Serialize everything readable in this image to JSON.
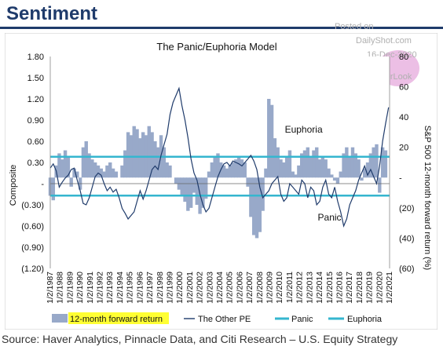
{
  "header": {
    "title": "Sentiment",
    "watermark_lines": [
      "Posted on",
      "DailyShot.com",
      "16-Dec-2020",
      "@SoberLook"
    ]
  },
  "colors": {
    "header_blue": "#1f3b6b",
    "forward_return_fill": "#98a9c9",
    "pe_line": "#1f3b6b",
    "panic_line": "#35b6cf",
    "euphoria_line": "#35b6cf",
    "legend_highlight": "#ffff33"
  },
  "chart_data": {
    "type": "area",
    "title": "The Panic/Euphoria Model",
    "ylabel": "Composite",
    "y2label": "S&P 500 12-month forward return (%)",
    "xlabel": "",
    "ylim": [
      -1.2,
      1.8
    ],
    "y2lim": [
      -60,
      80
    ],
    "xlim": [
      1987.0,
      2021.0
    ],
    "y_ticks": [
      "1.80",
      "1.50",
      "1.20",
      "0.90",
      "0.60",
      "0.30",
      "-",
      "(0.30)",
      "(0.60)",
      "(0.90)",
      "(1.20)"
    ],
    "y2_ticks": [
      "80",
      "60",
      "40",
      "20",
      "-",
      "(20)",
      "(40)",
      "(60)"
    ],
    "x_ticks": [
      "1/2/1987",
      "1/2/1988",
      "1/2/1989",
      "1/2/1990",
      "1/2/1991",
      "1/2/1992",
      "1/2/1993",
      "1/2/1994",
      "1/2/1995",
      "1/2/1996",
      "1/2/1997",
      "1/2/1998",
      "1/2/1999",
      "1/2/2000",
      "1/2/2001",
      "1/2/2002",
      "1/2/2003",
      "1/2/2004",
      "1/2/2005",
      "1/2/2006",
      "1/2/2007",
      "1/2/2008",
      "1/2/2009",
      "1/2/2010",
      "1/2/2011",
      "1/2/2012",
      "1/2/2013",
      "1/2/2014",
      "1/2/2015",
      "1/2/2016",
      "1/2/2017",
      "1/2/2018",
      "1/2/2019",
      "1/2/2020",
      "1/2/2021"
    ],
    "thresholds": {
      "panic": -0.17,
      "euphoria": 0.38
    },
    "annotations": [
      {
        "text": "Euphoria",
        "x": 2010.5,
        "y": 0.72
      },
      {
        "text": "Panic",
        "x": 2013.8,
        "y": -0.52
      }
    ],
    "legend": {
      "placement": "bottom",
      "items": [
        "12-month forward return",
        "The Other PE",
        "Panic",
        "Euphoria"
      ]
    },
    "series": [
      {
        "name": "12-month forward return",
        "axis": "right",
        "x": [
          1987.0,
          1987.3,
          1987.6,
          1987.9,
          1988.2,
          1988.5,
          1988.8,
          1989.1,
          1989.4,
          1989.7,
          1990.0,
          1990.3,
          1990.6,
          1990.9,
          1991.2,
          1991.5,
          1991.8,
          1992.1,
          1992.4,
          1992.7,
          1993.0,
          1993.3,
          1993.6,
          1993.9,
          1994.2,
          1994.5,
          1994.8,
          1995.1,
          1995.4,
          1995.7,
          1996.0,
          1996.3,
          1996.6,
          1996.9,
          1997.2,
          1997.5,
          1997.8,
          1998.1,
          1998.4,
          1998.7,
          1999.0,
          1999.3,
          1999.6,
          1999.9,
          2000.2,
          2000.5,
          2000.8,
          2001.1,
          2001.4,
          2001.7,
          2002.0,
          2002.3,
          2002.6,
          2002.9,
          2003.2,
          2003.5,
          2003.8,
          2004.1,
          2004.4,
          2004.7,
          2005.0,
          2005.3,
          2005.6,
          2005.9,
          2006.2,
          2006.5,
          2006.8,
          2007.1,
          2007.4,
          2007.7,
          2008.0,
          2008.3,
          2008.6,
          2008.9,
          2009.2,
          2009.5,
          2009.8,
          2010.1,
          2010.4,
          2010.7,
          2011.0,
          2011.3,
          2011.6,
          2011.9,
          2012.2,
          2012.5,
          2012.8,
          2013.1,
          2013.4,
          2013.7,
          2014.0,
          2014.3,
          2014.6,
          2014.9,
          2015.2,
          2015.5,
          2015.8,
          2016.1,
          2016.4,
          2016.7,
          2017.0,
          2017.3,
          2017.6,
          2017.9,
          2018.2,
          2018.5,
          2018.8,
          2019.1,
          2019.4,
          2019.7,
          2020.0,
          2020.3,
          2020.6
        ],
        "y": [
          -12,
          -15,
          8,
          16,
          12,
          18,
          14,
          -6,
          6,
          4,
          -8,
          20,
          24,
          16,
          12,
          10,
          8,
          6,
          4,
          8,
          10,
          6,
          4,
          0,
          8,
          18,
          30,
          28,
          34,
          32,
          26,
          30,
          28,
          34,
          30,
          24,
          20,
          28,
          20,
          10,
          8,
          0,
          -4,
          -8,
          -12,
          -16,
          -22,
          -20,
          -10,
          -18,
          -24,
          -20,
          -14,
          4,
          10,
          14,
          16,
          10,
          8,
          6,
          8,
          10,
          12,
          14,
          12,
          10,
          -6,
          -26,
          -38,
          -40,
          -36,
          -22,
          6,
          52,
          48,
          26,
          20,
          12,
          10,
          14,
          18,
          4,
          2,
          8,
          16,
          18,
          20,
          14,
          18,
          20,
          12,
          14,
          12,
          6,
          2,
          -2,
          -4,
          4,
          16,
          20,
          14,
          20,
          16,
          12,
          -2,
          6,
          10,
          16,
          20,
          22,
          -10,
          20,
          18
        ]
      },
      {
        "name": "The Other PE",
        "axis": "left",
        "x": [
          1987.0,
          1987.3,
          1987.6,
          1987.9,
          1988.2,
          1988.5,
          1988.8,
          1989.1,
          1989.4,
          1989.7,
          1990.0,
          1990.3,
          1990.6,
          1990.9,
          1991.2,
          1991.5,
          1991.8,
          1992.1,
          1992.4,
          1992.7,
          1993.0,
          1993.3,
          1993.6,
          1993.9,
          1994.2,
          1994.5,
          1994.8,
          1995.1,
          1995.4,
          1995.7,
          1996.0,
          1996.3,
          1996.6,
          1996.9,
          1997.2,
          1997.5,
          1997.8,
          1998.1,
          1998.4,
          1998.7,
          1999.0,
          1999.3,
          1999.6,
          1999.9,
          2000.2,
          2000.5,
          2000.8,
          2001.1,
          2001.4,
          2001.7,
          2002.0,
          2002.3,
          2002.6,
          2002.9,
          2003.2,
          2003.5,
          2003.8,
          2004.1,
          2004.4,
          2004.7,
          2005.0,
          2005.3,
          2005.6,
          2005.9,
          2006.2,
          2006.5,
          2006.8,
          2007.1,
          2007.4,
          2007.7,
          2008.0,
          2008.3,
          2008.6,
          2008.9,
          2009.2,
          2009.5,
          2009.8,
          2010.1,
          2010.4,
          2010.7,
          2011.0,
          2011.3,
          2011.6,
          2011.9,
          2012.2,
          2012.5,
          2012.8,
          2013.1,
          2013.4,
          2013.7,
          2014.0,
          2014.3,
          2014.6,
          2014.9,
          2015.2,
          2015.5,
          2015.8,
          2016.1,
          2016.4,
          2016.7,
          2017.0,
          2017.3,
          2017.6,
          2017.9,
          2018.2,
          2018.5,
          2018.8,
          2019.1,
          2019.4,
          2019.7,
          2020.0,
          2020.3,
          2020.6,
          2020.9
        ],
        "y": [
          0.22,
          0.28,
          0.18,
          -0.05,
          0.02,
          0.08,
          0.12,
          0.2,
          0.22,
          0.05,
          -0.1,
          -0.28,
          -0.3,
          -0.2,
          -0.05,
          0.1,
          0.15,
          0.12,
          0.0,
          -0.1,
          -0.05,
          -0.12,
          -0.08,
          -0.2,
          -0.35,
          -0.42,
          -0.5,
          -0.45,
          -0.4,
          -0.25,
          -0.1,
          -0.22,
          -0.1,
          0.05,
          0.2,
          0.25,
          0.2,
          0.4,
          0.55,
          0.7,
          0.98,
          1.15,
          1.25,
          1.35,
          1.1,
          0.9,
          0.65,
          0.35,
          0.15,
          0.05,
          -0.15,
          -0.3,
          -0.4,
          -0.35,
          -0.2,
          -0.05,
          0.1,
          0.2,
          0.28,
          0.3,
          0.25,
          0.32,
          0.3,
          0.28,
          0.25,
          0.3,
          0.35,
          0.4,
          0.32,
          0.2,
          -0.05,
          -0.2,
          -0.15,
          -0.1,
          0.0,
          0.05,
          0.1,
          -0.15,
          -0.25,
          -0.2,
          0.0,
          -0.05,
          -0.1,
          -0.15,
          0.05,
          0.0,
          -0.2,
          -0.05,
          -0.1,
          -0.3,
          -0.25,
          -0.05,
          0.05,
          -0.15,
          -0.2,
          -0.05,
          -0.25,
          -0.4,
          -0.6,
          -0.5,
          -0.3,
          -0.2,
          -0.1,
          0.05,
          0.15,
          0.25,
          0.12,
          0.2,
          0.1,
          0.0,
          0.25,
          0.6,
          0.85,
          1.08
        ]
      },
      {
        "name": "Panic",
        "axis": "left",
        "value": -0.17
      },
      {
        "name": "Euphoria",
        "axis": "left",
        "value": 0.38
      }
    ]
  },
  "footer": {
    "source": "Source: Haver Analytics, Pinnacle Data, and Citi Research – U.S. Equity Strategy"
  }
}
